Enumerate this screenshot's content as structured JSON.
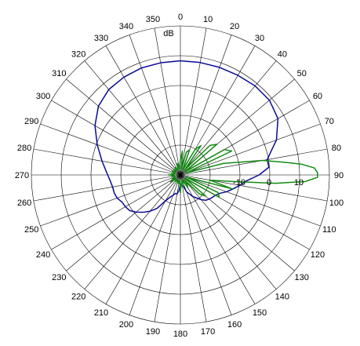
{
  "chart_data": {
    "type": "polar-line",
    "unit_label": "dB",
    "theta_zero": "top",
    "theta_direction": "clockwise",
    "theta_ticks": [
      0,
      10,
      20,
      30,
      40,
      50,
      60,
      70,
      80,
      90,
      100,
      110,
      120,
      130,
      140,
      150,
      160,
      170,
      180,
      190,
      200,
      210,
      220,
      230,
      240,
      250,
      260,
      270,
      280,
      290,
      300,
      310,
      320,
      330,
      340,
      350
    ],
    "r_range": [
      -30,
      20
    ],
    "r_rings": [
      -20,
      -10,
      0,
      10,
      20
    ],
    "r_tick_labels": [
      "-10",
      "0",
      "10"
    ],
    "r_tick_angle": 90,
    "grid": true,
    "series": [
      {
        "color": "#0a0a96",
        "theta": [
          0,
          10,
          20,
          30,
          40,
          50,
          60,
          70,
          75,
          80,
          85,
          90,
          95,
          100,
          105,
          110,
          115,
          120,
          125,
          130,
          135,
          140,
          145,
          150,
          160,
          170,
          180,
          185,
          190,
          195,
          200,
          205,
          210,
          215,
          220,
          225,
          230,
          235,
          240,
          245,
          250,
          255,
          260,
          265,
          270,
          275,
          280,
          290,
          300,
          310,
          320,
          330,
          340,
          350,
          360
        ],
        "r": [
          8.3,
          8.3,
          8.4,
          8.6,
          9.0,
          9.0,
          7.8,
          4.3,
          1.6,
          -0.4,
          -0.2,
          -3.6,
          -7.7,
          -9.8,
          -11.8,
          -13.5,
          -15.4,
          -16.4,
          -16.9,
          -17.4,
          -18.0,
          -19.2,
          -20.6,
          -21.6,
          -24.0,
          -26.9,
          -27.1,
          -24.8,
          -23.5,
          -23.6,
          -22.7,
          -21.8,
          -19.9,
          -16.3,
          -14.1,
          -12.3,
          -10.6,
          -9.2,
          -8.7,
          -8.4,
          -7.4,
          -7.0,
          -6.9,
          -6.4,
          -5.6,
          -4.6,
          -3.3,
          -0.3,
          3.1,
          5.9,
          7.4,
          7.9,
          8.2,
          8.2,
          8.3
        ]
      },
      {
        "color": "#138a13",
        "theta": [
          0,
          5,
          10,
          15,
          20,
          25,
          30,
          35,
          40,
          45,
          50,
          55,
          60,
          65,
          70,
          75,
          80,
          83,
          85,
          87,
          89,
          90,
          91,
          93,
          95,
          97,
          100,
          105,
          110,
          115,
          120,
          125,
          130,
          135,
          140,
          145,
          150,
          155,
          160,
          165,
          170,
          175,
          180,
          185,
          190,
          195,
          200,
          205,
          210,
          215,
          220,
          225,
          230,
          235,
          240,
          245,
          250,
          255,
          260,
          265,
          270,
          275,
          280,
          285,
          290,
          295,
          300,
          305,
          310,
          315,
          320,
          325,
          330,
          335,
          340,
          345,
          350,
          355,
          360
        ],
        "r": [
          -25,
          -22,
          -28,
          -22,
          -21,
          -28,
          -20,
          -18,
          -28,
          -16,
          -14,
          -28,
          -13,
          -11,
          -28,
          -15,
          -2,
          5,
          11,
          15,
          16,
          16,
          16,
          12,
          2,
          -12,
          -20,
          -12,
          -28,
          -16,
          -15,
          -28,
          -19,
          -21,
          -28,
          -26,
          -25,
          -28,
          -27,
          -28,
          -26,
          -27,
          -24,
          -28,
          -27,
          -28,
          -27,
          -28,
          -28,
          -28,
          -27,
          -28,
          -28,
          -26,
          -28,
          -27,
          -28,
          -28,
          -27,
          -28,
          -26,
          -28,
          -27,
          -28,
          -28,
          -27,
          -28,
          -28,
          -27,
          -28,
          -28,
          -27,
          -28,
          -28,
          -27,
          -26,
          -28,
          -27,
          -25
        ]
      }
    ]
  }
}
